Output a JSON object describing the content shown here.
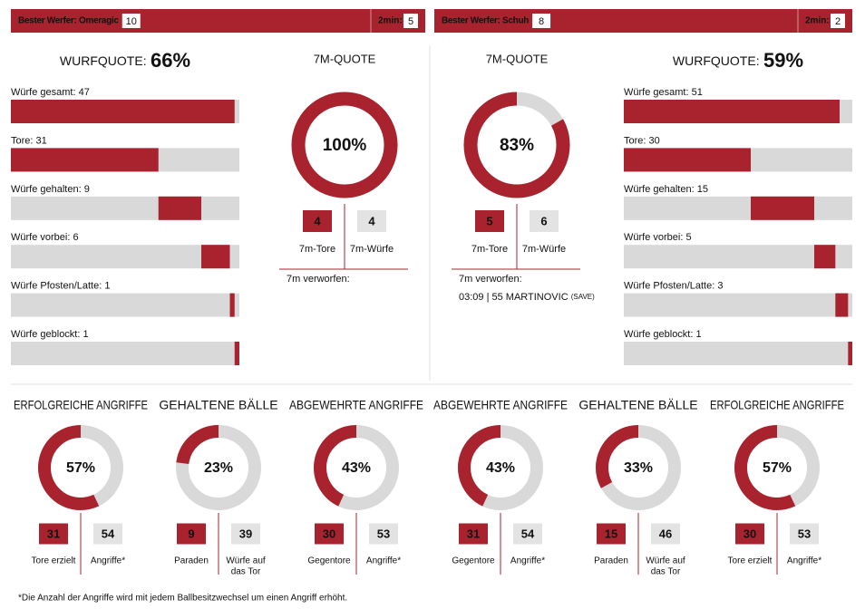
{
  "teams": [
    {
      "header": {
        "scorer_label": "Bester Werfer: Omeragic",
        "scorer_goals": 10,
        "penalty_label": "2min:",
        "penalties": 5
      },
      "shot_rate": {
        "label": "WURFQUOTE:",
        "value": "66%"
      },
      "shots": [
        {
          "label": "Würfe gesamt:",
          "value": 47
        },
        {
          "label": "Tore:",
          "value": 31
        },
        {
          "label": "Würfe gehalten:",
          "value": 9
        },
        {
          "label": "Würfe vorbei:",
          "value": 6
        },
        {
          "label": "Würfe Pfosten/Latte:",
          "value": 1
        },
        {
          "label": "Würfe geblockt:",
          "value": 1
        }
      ],
      "seven_m": {
        "title": "7M-QUOTE",
        "rate": {
          "value": 100,
          "label": "100%"
        },
        "goals": {
          "value": 4,
          "label": "7m-Tore"
        },
        "attempts": {
          "value": 4,
          "label": "7m-Würfe"
        },
        "missed_label": "7m verworfen:",
        "missed": []
      },
      "stats": [
        {
          "title": "ERFOLGREICHE ANGRIFFE",
          "rate": {
            "value": 57,
            "label": "57%"
          },
          "a": {
            "value": 31,
            "label": [
              "Tore erzielt"
            ]
          },
          "b": {
            "value": 54,
            "label": [
              "Angriffe*"
            ]
          }
        },
        {
          "title": "GEHALTENE BÄLLE",
          "rate": {
            "value": 23,
            "label": "23%"
          },
          "a": {
            "value": 9,
            "label": [
              "Paraden"
            ]
          },
          "b": {
            "value": 39,
            "label": [
              "Würfe auf",
              "das Tor"
            ]
          }
        },
        {
          "title": "ABGEWEHRTE ANGRIFFE",
          "rate": {
            "value": 43,
            "label": "43%"
          },
          "a": {
            "value": 30,
            "label": [
              "Gegentore"
            ]
          },
          "b": {
            "value": 53,
            "label": [
              "Angriffe*"
            ]
          }
        }
      ]
    },
    {
      "header": {
        "scorer_label": "Bester Werfer: Schuh",
        "scorer_goals": 8,
        "penalty_label": "2min:",
        "penalties": 2
      },
      "shot_rate": {
        "label": "WURFQUOTE:",
        "value": "59%"
      },
      "shots": [
        {
          "label": "Würfe gesamt:",
          "value": 51
        },
        {
          "label": "Tore:",
          "value": 30
        },
        {
          "label": "Würfe gehalten:",
          "value": 15
        },
        {
          "label": "Würfe vorbei:",
          "value": 5
        },
        {
          "label": "Würfe Pfosten/Latte:",
          "value": 3
        },
        {
          "label": "Würfe geblockt:",
          "value": 1
        }
      ],
      "seven_m": {
        "title": "7M-QUOTE",
        "rate": {
          "value": 83,
          "label": "83%"
        },
        "goals": {
          "value": 5,
          "label": "7m-Tore"
        },
        "attempts": {
          "value": 6,
          "label": "7m-Würfe"
        },
        "missed_label": "7m verworfen:",
        "missed": [
          {
            "text": "03:09 | 55 MARTINOVIC",
            "note": "(SAVE)"
          }
        ]
      },
      "stats": [
        {
          "title": "ABGEWEHRTE ANGRIFFE",
          "rate": {
            "value": 43,
            "label": "43%"
          },
          "a": {
            "value": 31,
            "label": [
              "Gegentore"
            ]
          },
          "b": {
            "value": 54,
            "label": [
              "Angriffe*"
            ]
          }
        },
        {
          "title": "GEHALTENE BÄLLE",
          "rate": {
            "value": 33,
            "label": "33%"
          },
          "a": {
            "value": 15,
            "label": [
              "Paraden"
            ]
          },
          "b": {
            "value": 46,
            "label": [
              "Würfe auf",
              "das Tor"
            ]
          }
        },
        {
          "title": "ERFOLGREICHE ANGRIFFE",
          "rate": {
            "value": 57,
            "label": "57%"
          },
          "a": {
            "value": 30,
            "label": [
              "Tore erzielt"
            ]
          },
          "b": {
            "value": 53,
            "label": [
              "Angriffe*"
            ]
          }
        }
      ]
    }
  ],
  "footnote": "*Die Anzahl der Angriffe wird mit jedem Ballbesitzwechsel um einen Angriff erhöht."
}
